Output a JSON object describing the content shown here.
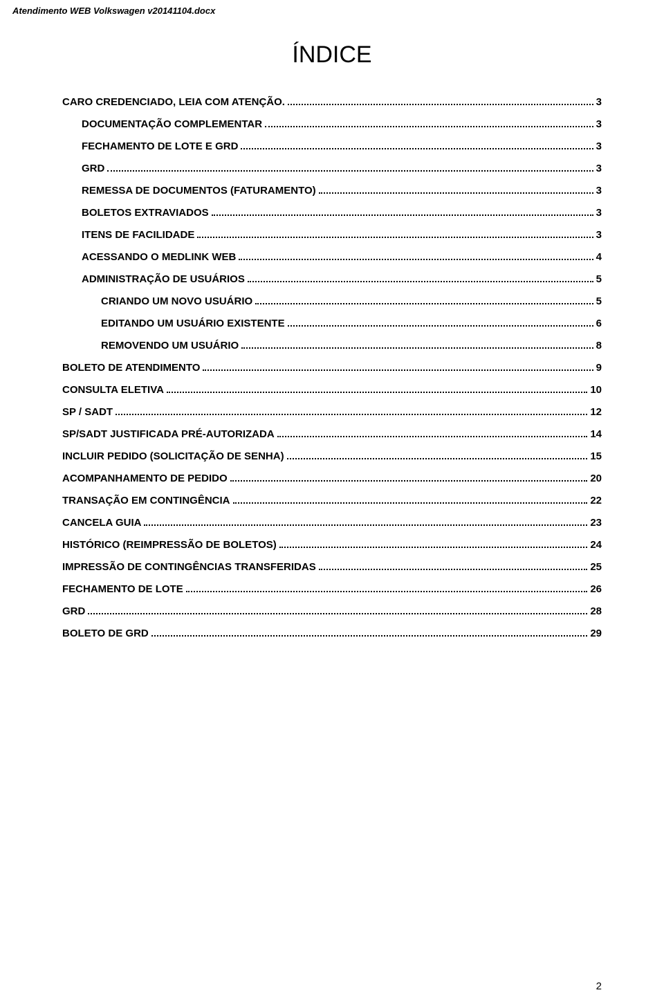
{
  "document": {
    "header_text": "Atendimento WEB Volkswagen v20141104.docx",
    "index_title": "ÍNDICE",
    "page_number": "2"
  },
  "toc": {
    "entries": [
      {
        "level": 0,
        "label": "CARO CREDENCIADO, LEIA COM ATENÇÃO.",
        "page": "3"
      },
      {
        "level": 1,
        "label": "DOCUMENTAÇÃO COMPLEMENTAR",
        "page": "3"
      },
      {
        "level": 1,
        "label": "FECHAMENTO DE LOTE E GRD",
        "page": "3"
      },
      {
        "level": 1,
        "label": "GRD",
        "page": "3"
      },
      {
        "level": 1,
        "label": "REMESSA DE DOCUMENTOS (FATURAMENTO)",
        "page": "3"
      },
      {
        "level": 1,
        "label": "BOLETOS EXTRAVIADOS",
        "page": "3"
      },
      {
        "level": 1,
        "label": "ITENS DE FACILIDADE",
        "page": "3"
      },
      {
        "level": 1,
        "label": "ACESSANDO O MEDLINK WEB",
        "page": "4"
      },
      {
        "level": 1,
        "label": "ADMINISTRAÇÃO DE USUÁRIOS",
        "page": "5"
      },
      {
        "level": 2,
        "label": "CRIANDO UM NOVO USUÁRIO",
        "page": "5"
      },
      {
        "level": 2,
        "label": "EDITANDO UM USUÁRIO EXISTENTE",
        "page": "6"
      },
      {
        "level": 2,
        "label": "REMOVENDO UM USUÁRIO",
        "page": "8"
      },
      {
        "level": 0,
        "label": "BOLETO DE ATENDIMENTO",
        "page": "9"
      },
      {
        "level": 0,
        "label": "CONSULTA ELETIVA",
        "page": "10"
      },
      {
        "level": 0,
        "label": "SP / SADT",
        "page": "12"
      },
      {
        "level": 0,
        "label": "SP/SADT JUSTIFICADA PRÉ-AUTORIZADA",
        "page": "14"
      },
      {
        "level": 0,
        "label": "INCLUIR PEDIDO (SOLICITAÇÃO DE SENHA)",
        "page": "15"
      },
      {
        "level": 0,
        "label": "ACOMPANHAMENTO DE PEDIDO",
        "page": "20"
      },
      {
        "level": 0,
        "label": "TRANSAÇÃO EM CONTINGÊNCIA",
        "page": "22"
      },
      {
        "level": 0,
        "label": "CANCELA GUIA",
        "page": "23"
      },
      {
        "level": 0,
        "label": "HISTÓRICO (REIMPRESSÃO DE BOLETOS)",
        "page": "24"
      },
      {
        "level": 0,
        "label": "IMPRESSÃO DE CONTINGÊNCIAS TRANSFERIDAS",
        "page": "25"
      },
      {
        "level": 0,
        "label": "FECHAMENTO DE LOTE",
        "page": "26"
      },
      {
        "level": 0,
        "label": "GRD",
        "page": "28"
      },
      {
        "level": 0,
        "label": "BOLETO DE GRD",
        "page": "29"
      }
    ]
  }
}
